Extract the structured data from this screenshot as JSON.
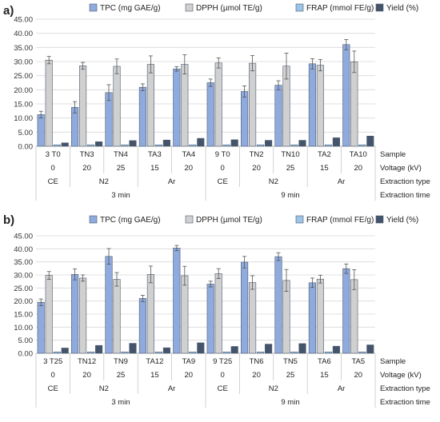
{
  "chart_data": [
    {
      "type": "bar",
      "panel_label": "a)",
      "legend_position": "top",
      "grid": true,
      "ylim": [
        0,
        45
      ],
      "yticks": [
        "0.00",
        "5.00",
        "10.00",
        "15.00",
        "20.00",
        "25.00",
        "30.00",
        "35.00",
        "40.00",
        "45.00"
      ],
      "categories": [
        "3 T0",
        "TN3",
        "TN4",
        "TA3",
        "TA4",
        "9 T0",
        "TN2",
        "TN10",
        "TA2",
        "TA10"
      ],
      "series": [
        {
          "name": "TPC (mg GAE/g)",
          "color": "#8faadc",
          "values": [
            11.2,
            13.8,
            19.0,
            20.9,
            27.4,
            22.5,
            19.4,
            21.6,
            29.2,
            36.0
          ],
          "errors": [
            1.2,
            2.0,
            2.8,
            1.2,
            0.8,
            1.3,
            2.0,
            1.6,
            1.8,
            1.8
          ]
        },
        {
          "name": "DPPH (µmol TE/g)",
          "color": "#d0d0d0",
          "values": [
            30.5,
            28.5,
            28.3,
            29.0,
            29.0,
            29.5,
            29.4,
            28.4,
            28.7,
            29.9
          ],
          "errors": [
            1.3,
            1.2,
            2.6,
            3.0,
            3.4,
            1.8,
            2.7,
            4.6,
            2.0,
            3.8
          ]
        },
        {
          "name": "FRAP (mmol FE/g)",
          "color": "#9dc3e6",
          "values": [
            0.5,
            0.5,
            0.5,
            0.5,
            0.5,
            0.5,
            0.5,
            0.5,
            0.5,
            0.5
          ],
          "errors": [
            0,
            0,
            0,
            0,
            0,
            0,
            0,
            0,
            0,
            0
          ]
        },
        {
          "name": "Yield (%)",
          "color": "#44546a",
          "values": [
            1.2,
            1.6,
            2.0,
            2.2,
            2.8,
            2.3,
            2.1,
            2.1,
            3.0,
            3.6
          ],
          "errors": [
            0,
            0,
            0,
            0,
            0,
            0,
            0,
            0,
            0,
            0
          ]
        }
      ],
      "table": {
        "row_labels": [
          "Sample",
          "Voltage (kV)",
          "Extraction type",
          "Extraction time"
        ],
        "voltage": [
          "0",
          "20",
          "25",
          "15",
          "20",
          "0",
          "20",
          "25",
          "15",
          "20"
        ],
        "types": [
          {
            "label": "CE",
            "span": 1
          },
          {
            "label": "N2",
            "span": 2
          },
          {
            "label": "Ar",
            "span": 2
          },
          {
            "label": "CE",
            "span": 1
          },
          {
            "label": "N2",
            "span": 2
          },
          {
            "label": "Ar",
            "span": 2
          }
        ],
        "times": [
          {
            "label": "3 min",
            "span": 5
          },
          {
            "label": "9 min",
            "span": 5
          }
        ]
      }
    },
    {
      "type": "bar",
      "panel_label": "b)",
      "legend_position": "top",
      "grid": true,
      "ylim": [
        0,
        45
      ],
      "yticks": [
        "0.00",
        "5.00",
        "10.00",
        "15.00",
        "20.00",
        "25.00",
        "30.00",
        "35.00",
        "40.00",
        "45.00"
      ],
      "categories": [
        "3 T25",
        "TN12",
        "TN9",
        "TA12",
        "TA9",
        "9 T25",
        "TN6",
        "TN5",
        "TA6",
        "TA5"
      ],
      "series": [
        {
          "name": "TPC (mg GAE/g)",
          "color": "#8faadc",
          "values": [
            19.5,
            30.2,
            37.1,
            21.0,
            40.3,
            26.5,
            34.9,
            37.0,
            27.0,
            32.4
          ],
          "errors": [
            1.3,
            2.1,
            3.0,
            1.2,
            1.0,
            1.1,
            2.2,
            1.5,
            1.8,
            1.8
          ]
        },
        {
          "name": "DPPH (µmol TE/g)",
          "color": "#d0d0d0",
          "values": [
            29.8,
            28.8,
            28.3,
            30.2,
            29.7,
            30.5,
            27.1,
            27.9,
            28.4,
            28.2
          ],
          "errors": [
            1.5,
            1.2,
            2.6,
            3.2,
            3.6,
            1.9,
            2.6,
            4.2,
            1.5,
            3.8
          ]
        },
        {
          "name": "FRAP (mmol FE/g)",
          "color": "#9dc3e6",
          "values": [
            0.5,
            0.5,
            0.5,
            0.5,
            0.5,
            0.5,
            0.5,
            0.5,
            0.5,
            0.5
          ],
          "errors": [
            0,
            0,
            0,
            0,
            0,
            0,
            0,
            0,
            0,
            0
          ]
        },
        {
          "name": "Yield (%)",
          "color": "#44546a",
          "values": [
            2.0,
            3.0,
            3.8,
            2.1,
            4.0,
            2.6,
            3.5,
            3.7,
            2.7,
            3.2
          ],
          "errors": [
            0,
            0,
            0,
            0,
            0,
            0,
            0,
            0,
            0,
            0
          ]
        }
      ],
      "table": {
        "row_labels": [
          "Sample",
          "Voltage (kV)",
          "Extraction type",
          "Extraction time"
        ],
        "voltage": [
          "0",
          "20",
          "25",
          "15",
          "20",
          "0",
          "20",
          "25",
          "15",
          "20"
        ],
        "types": [
          {
            "label": "CE",
            "span": 1
          },
          {
            "label": "N2",
            "span": 2
          },
          {
            "label": "Ar",
            "span": 2
          },
          {
            "label": "CE",
            "span": 1
          },
          {
            "label": "N2",
            "span": 2
          },
          {
            "label": "Ar",
            "span": 2
          }
        ],
        "times": [
          {
            "label": "3 min",
            "span": 5
          },
          {
            "label": "9 min",
            "span": 5
          }
        ]
      }
    }
  ]
}
